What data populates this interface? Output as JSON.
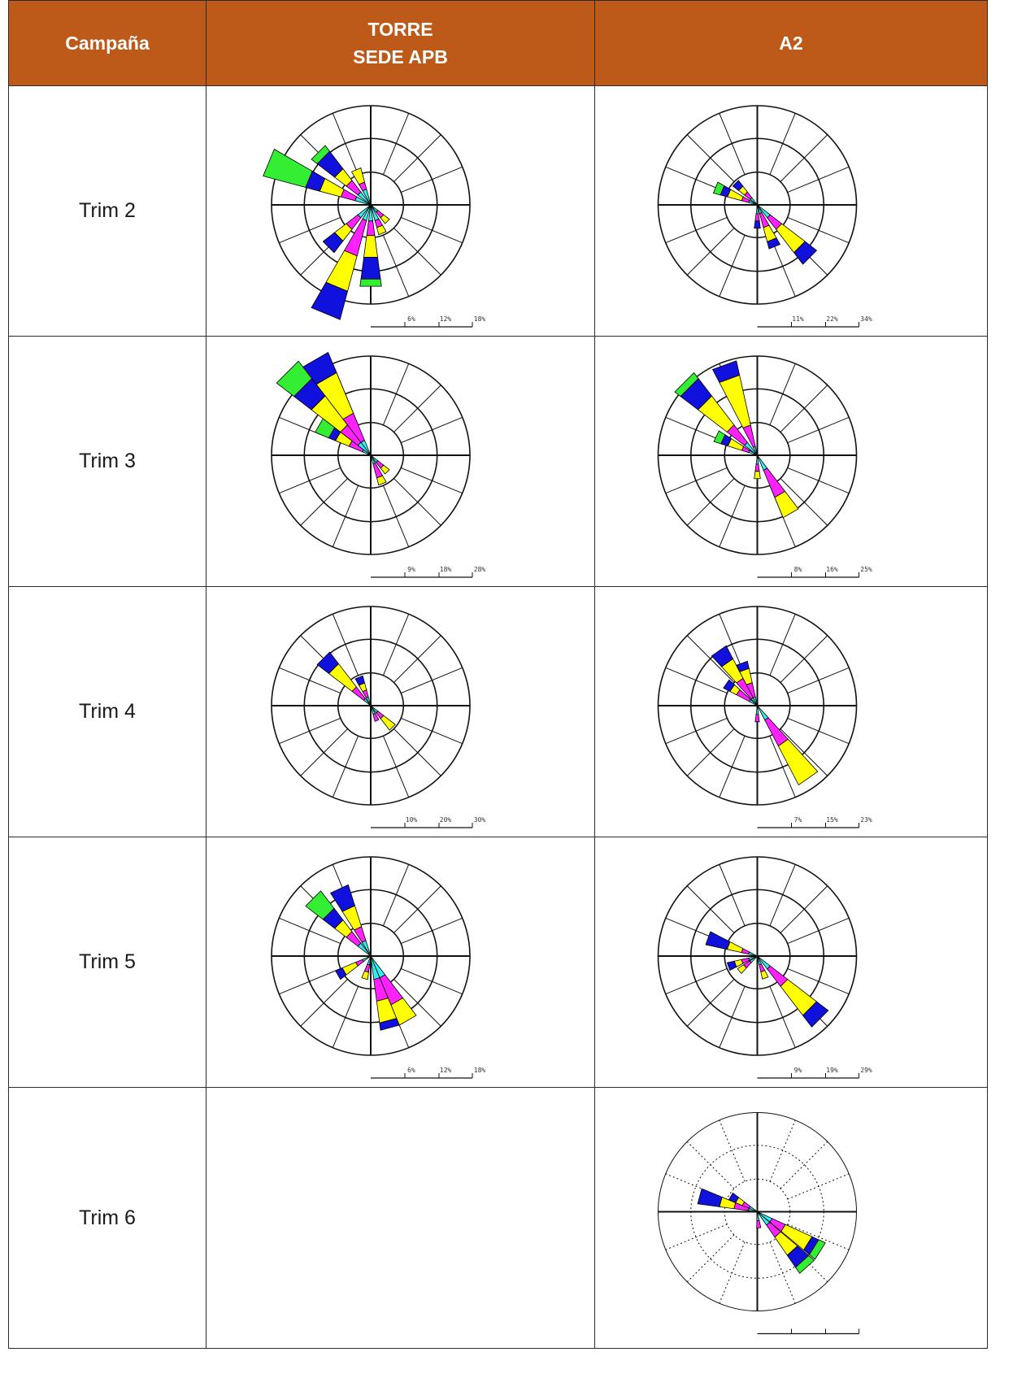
{
  "headers": {
    "campaign": "Campaña",
    "torre_line1": "TORRE",
    "torre_line2": "SEDE APB",
    "a2": "A2"
  },
  "palette": {
    "green": "#33ee33",
    "blue": "#1111dd",
    "yellow": "#ffff00",
    "magenta": "#ff22ff",
    "cyan": "#33eeee",
    "header": "#bd5a1a"
  },
  "rows": [
    {
      "label": "Trim 2",
      "torre": {
        "scale": [
          "6%",
          "12%",
          "18%"
        ],
        "petals": [
          {
            "dir": 292.5,
            "segs": [
              2,
              2,
              3,
              2,
              6
            ]
          },
          {
            "dir": 315,
            "segs": [
              2,
              2,
              2,
              3,
              1
            ]
          },
          {
            "dir": 337.5,
            "segs": [
              2,
              1,
              2,
              0,
              0
            ]
          },
          {
            "dir": 202.5,
            "segs": [
              2,
              5,
              5,
              4,
              0
            ]
          },
          {
            "dir": 180,
            "segs": [
              2,
              2,
              3,
              3,
              1
            ]
          },
          {
            "dir": 225,
            "segs": [
              2,
              2,
              2,
              2,
              0
            ]
          },
          {
            "dir": 157.5,
            "segs": [
              2,
              1,
              1,
              0,
              0
            ]
          },
          {
            "dir": 135,
            "segs": [
              1,
              1,
              1,
              0,
              0
            ]
          }
        ]
      },
      "a2": {
        "scale": [
          "11%",
          "22%",
          "34%"
        ],
        "petals": [
          {
            "dir": 135,
            "segs": [
              2,
              2,
              4,
              2,
              0
            ]
          },
          {
            "dir": 157.5,
            "segs": [
              1,
              2,
              2,
              1,
              0
            ]
          },
          {
            "dir": 292.5,
            "segs": [
              1,
              1,
              2,
              1,
              1
            ]
          },
          {
            "dir": 315,
            "segs": [
              1,
              1,
              1,
              1,
              0
            ]
          },
          {
            "dir": 180,
            "segs": [
              1,
              1,
              0,
              1,
              0
            ]
          }
        ]
      }
    },
    {
      "label": "Trim 3",
      "torre": {
        "scale": [
          "9%",
          "18%",
          "28%"
        ],
        "petals": [
          {
            "dir": 330,
            "segs": [
              2,
              4,
              6,
              3,
              0
            ]
          },
          {
            "dir": 315,
            "segs": [
              2,
              3,
              5,
              3,
              3
            ]
          },
          {
            "dir": 300,
            "segs": [
              1,
              2,
              2,
              1,
              2
            ]
          },
          {
            "dir": 157.5,
            "segs": [
              1,
              2,
              1,
              0,
              0
            ]
          },
          {
            "dir": 135,
            "segs": [
              1,
              1,
              1,
              0,
              0
            ]
          }
        ]
      },
      "a2": {
        "scale": [
          "8%",
          "16%",
          "25%"
        ],
        "petals": [
          {
            "dir": 340,
            "segs": [
              1,
              3,
              7,
              2,
              0
            ]
          },
          {
            "dir": 315,
            "segs": [
              2,
              3,
              5,
              3,
              1
            ]
          },
          {
            "dir": 150,
            "segs": [
              2,
              4,
              3,
              0,
              0
            ]
          },
          {
            "dir": 295,
            "segs": [
              1,
              1,
              2,
              1,
              1
            ]
          },
          {
            "dir": 180,
            "segs": [
              1,
              1,
              1,
              0,
              0
            ]
          }
        ]
      }
    },
    {
      "label": "Trim 4",
      "torre": {
        "scale": [
          "10%",
          "20%",
          "30%"
        ],
        "petals": [
          {
            "dir": 315,
            "segs": [
              1,
              2,
              4,
              2,
              0
            ]
          },
          {
            "dir": 337.5,
            "segs": [
              1,
              1,
              1,
              1,
              0
            ]
          },
          {
            "dir": 135,
            "segs": [
              1,
              1,
              2,
              0,
              0
            ]
          },
          {
            "dir": 157.5,
            "segs": [
              1,
              1,
              0,
              0,
              0
            ]
          }
        ]
      },
      "a2": {
        "scale": [
          "7%",
          "15%",
          "23%"
        ],
        "petals": [
          {
            "dir": 145,
            "segs": [
              2,
              4,
              6,
              0,
              0
            ]
          },
          {
            "dir": 325,
            "segs": [
              1,
              3,
              3,
              2,
              0
            ]
          },
          {
            "dir": 340,
            "segs": [
              1,
              2,
              2,
              1,
              0
            ]
          },
          {
            "dir": 305,
            "segs": [
              1,
              2,
              1,
              1,
              0
            ]
          },
          {
            "dir": 180,
            "segs": [
              1,
              1,
              0,
              0,
              0
            ]
          }
        ]
      }
    },
    {
      "label": "Trim 5",
      "torre": {
        "scale": [
          "6%",
          "12%",
          "18%"
        ],
        "petals": [
          {
            "dir": 150,
            "segs": [
              3,
              4,
              3,
              0,
              0
            ]
          },
          {
            "dir": 165,
            "segs": [
              3,
              3,
              3,
              1,
              0
            ]
          },
          {
            "dir": 315,
            "segs": [
              2,
              2,
              2,
              2,
              3
            ]
          },
          {
            "dir": 335,
            "segs": [
              2,
              2,
              3,
              3,
              0
            ]
          },
          {
            "dir": 240,
            "segs": [
              1,
              1,
              2,
              1,
              0
            ]
          },
          {
            "dir": 195,
            "segs": [
              1,
              1,
              1,
              0,
              0
            ]
          }
        ]
      },
      "a2": {
        "scale": [
          "9%",
          "19%",
          "29%"
        ],
        "petals": [
          {
            "dir": 135,
            "segs": [
              2,
              3,
              5,
              2,
              0
            ]
          },
          {
            "dir": 290,
            "segs": [
              1,
              1,
              2,
              3,
              0
            ]
          },
          {
            "dir": 250,
            "segs": [
              1,
              1,
              1,
              1,
              0
            ]
          },
          {
            "dir": 160,
            "segs": [
              1,
              1,
              1,
              0,
              0
            ]
          },
          {
            "dir": 230,
            "segs": [
              1,
              1,
              1,
              0,
              0
            ]
          }
        ]
      }
    },
    {
      "label": "Trim 6",
      "torre": null,
      "a2": {
        "scale": [
          "",
          "",
          ""
        ],
        "petals": [
          {
            "dir": 122,
            "segs": [
              2,
              2,
              4,
              1,
              1
            ]
          },
          {
            "dir": 138,
            "segs": [
              2,
              2,
              3,
              2,
              1
            ]
          },
          {
            "dir": 285,
            "segs": [
              1,
              2,
              2,
              3,
              0
            ]
          },
          {
            "dir": 300,
            "segs": [
              1,
              1,
              1,
              1,
              0
            ]
          },
          {
            "dir": 175,
            "segs": [
              1,
              1,
              0,
              0,
              0
            ]
          }
        ]
      }
    }
  ]
}
